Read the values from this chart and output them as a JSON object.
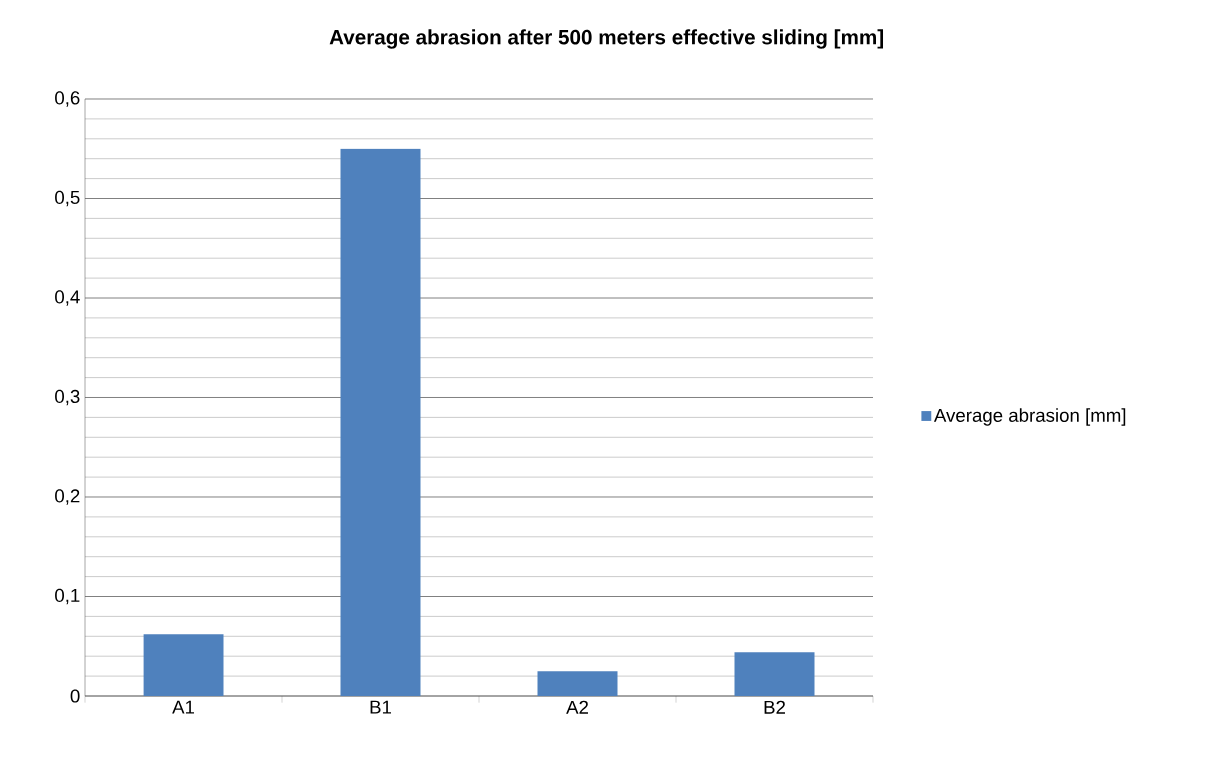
{
  "chart_data": {
    "type": "bar",
    "title": "Average abrasion after 500 meters effective sliding [mm]",
    "categories": [
      "A1",
      "B1",
      "A2",
      "B2"
    ],
    "series": [
      {
        "name": "Average abrasion [mm]",
        "color": "#4f81bd",
        "values": [
          0.062,
          0.55,
          0.025,
          0.044
        ]
      }
    ],
    "ylim": [
      0,
      0.6
    ],
    "yticks": [
      0,
      {
        "value": 0.1,
        "label": "0,1"
      },
      {
        "value": 0.2,
        "label": "0,2"
      },
      {
        "value": 0.3,
        "label": "0,3"
      },
      {
        "value": 0.4,
        "label": "0,4"
      },
      {
        "value": 0.5,
        "label": "0,5"
      },
      {
        "value": 0.6,
        "label": "0,6"
      }
    ],
    "grid": "y",
    "legend": "right"
  }
}
